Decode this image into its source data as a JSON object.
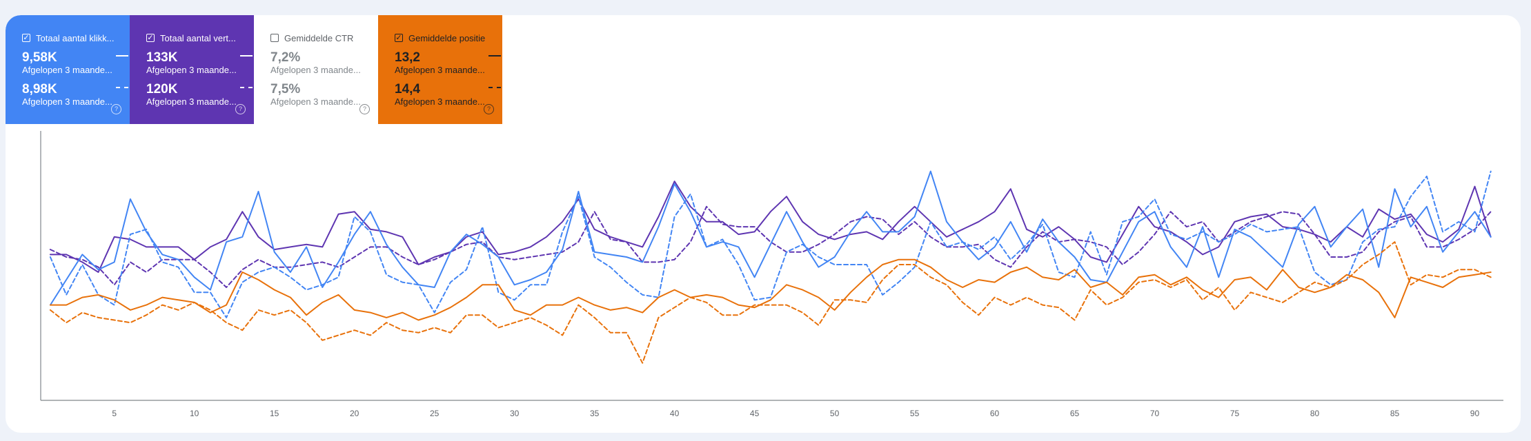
{
  "cards": [
    {
      "key": "clicks",
      "checked": true,
      "label": "Totaal aantal klikk...",
      "value1": "9,58K",
      "period1": "Afgelopen 3 maande...",
      "value2": "8,98K",
      "period2": "Afgelopen 3 maande...",
      "color": "#4285f4"
    },
    {
      "key": "impressions",
      "checked": true,
      "label": "Totaal aantal vert...",
      "value1": "133K",
      "period1": "Afgelopen 3 maande...",
      "value2": "120K",
      "period2": "Afgelopen 3 maande...",
      "color": "#5e35b1"
    },
    {
      "key": "ctr",
      "checked": false,
      "label": "Gemiddelde CTR",
      "value1": "7,2%",
      "period1": "Afgelopen 3 maande...",
      "value2": "7,5%",
      "period2": "Afgelopen 3 maande...",
      "color": "#ffffff"
    },
    {
      "key": "position",
      "checked": true,
      "label": "Gemiddelde positie",
      "value1": "13,2",
      "period1": "Afgelopen 3 maande...",
      "value2": "14,4",
      "period2": "Afgelopen 3 maande...",
      "color": "#e8710a"
    }
  ],
  "icons": {
    "checkbox": "checkbox-checked-icon",
    "help": "help-circle-icon",
    "check_glyph": "✓",
    "help_glyph": "?"
  },
  "chart_data": {
    "type": "line",
    "x_ticks": [
      5,
      10,
      15,
      20,
      25,
      30,
      35,
      40,
      45,
      50,
      55,
      60,
      65,
      70,
      75,
      80,
      85,
      90
    ],
    "xlim": [
      1,
      91
    ],
    "ylim": [
      0,
      100
    ],
    "grid": false,
    "legend": "none",
    "series": [
      {
        "key": "impr_prev",
        "color": "#5e35b1",
        "dash": true,
        "values": [
          59,
          56,
          55,
          52,
          45,
          54,
          50,
          55,
          55,
          55,
          50,
          44,
          51,
          55,
          52,
          52,
          53,
          54,
          52,
          56,
          60,
          60,
          56,
          53,
          55,
          58,
          61,
          62,
          56,
          55,
          56,
          57,
          58,
          62,
          74,
          63,
          62,
          54,
          54,
          55,
          62,
          76,
          69,
          68,
          68,
          62,
          58,
          58,
          61,
          65,
          70,
          72,
          71,
          65,
          70,
          64,
          60,
          60,
          61,
          55,
          52,
          60,
          66,
          62,
          63,
          62,
          60,
          53,
          58,
          65,
          74,
          68,
          70,
          62,
          66,
          70,
          72,
          74,
          73,
          65,
          56,
          56,
          58,
          66,
          70,
          72,
          60,
          60,
          63,
          67,
          74
        ]
      },
      {
        "key": "impr_cur",
        "color": "#5e35b1",
        "dash": false,
        "values": [
          57,
          57,
          54,
          50,
          64,
          63,
          60,
          60,
          60,
          55,
          60,
          63,
          74,
          64,
          59,
          60,
          61,
          60,
          73,
          74,
          67,
          66,
          64,
          53,
          56,
          58,
          64,
          66,
          57,
          58,
          60,
          64,
          70,
          79,
          67,
          64,
          62,
          60,
          72,
          86,
          76,
          70,
          70,
          65,
          66,
          74,
          80,
          70,
          65,
          63,
          65,
          66,
          63,
          70,
          76,
          70,
          64,
          67,
          70,
          74,
          83,
          67,
          64,
          68,
          63,
          56,
          54,
          65,
          76,
          68,
          66,
          62,
          57,
          60,
          70,
          72,
          73,
          68,
          67,
          65,
          62,
          68,
          64,
          75,
          71,
          73,
          65,
          62,
          67,
          84,
          64
        ]
      },
      {
        "key": "clicks_prev",
        "color": "#4285f4",
        "dash": true,
        "values": [
          56,
          41,
          53,
          41,
          37,
          65,
          67,
          54,
          52,
          42,
          42,
          32,
          46,
          50,
          52,
          48,
          43,
          45,
          48,
          72,
          66,
          49,
          46,
          45,
          34,
          46,
          51,
          68,
          42,
          39,
          45,
          45,
          66,
          80,
          56,
          52,
          46,
          41,
          40,
          72,
          81,
          60,
          63,
          53,
          39,
          40,
          58,
          61,
          56,
          53,
          53,
          53,
          41,
          46,
          52,
          70,
          60,
          62,
          59,
          64,
          55,
          61,
          69,
          50,
          48,
          66,
          49,
          70,
          72,
          79,
          65,
          63,
          66,
          62,
          65,
          69,
          66,
          67,
          68,
          50,
          45,
          47,
          62,
          67,
          68,
          80,
          88,
          66,
          70,
          66,
          90
        ]
      },
      {
        "key": "clicks_cur",
        "color": "#4285f4",
        "dash": false,
        "values": [
          37,
          47,
          57,
          51,
          54,
          79,
          66,
          57,
          55,
          48,
          43,
          62,
          64,
          82,
          58,
          50,
          60,
          44,
          54,
          65,
          74,
          61,
          52,
          45,
          44,
          58,
          65,
          61,
          56,
          45,
          47,
          50,
          59,
          82,
          58,
          57,
          56,
          54,
          68,
          85,
          74,
          60,
          62,
          60,
          48,
          61,
          74,
          62,
          52,
          56,
          66,
          74,
          66,
          66,
          72,
          90,
          70,
          62,
          55,
          60,
          70,
          58,
          71,
          62,
          56,
          47,
          46,
          58,
          70,
          74,
          60,
          52,
          68,
          48,
          67,
          64,
          58,
          52,
          69,
          76,
          60,
          68,
          75,
          52,
          83,
          68,
          76,
          58,
          66,
          74,
          64
        ]
      },
      {
        "key": "pos_prev",
        "color": "#e8710a",
        "dash": true,
        "values": [
          35,
          30,
          34,
          32,
          31,
          30,
          33,
          37,
          35,
          38,
          35,
          30,
          27,
          35,
          33,
          35,
          30,
          23,
          25,
          27,
          25,
          30,
          27,
          26,
          28,
          26,
          33,
          33,
          28,
          30,
          32,
          29,
          25,
          37,
          32,
          26,
          26,
          14,
          32,
          36,
          40,
          38,
          33,
          33,
          37,
          37,
          37,
          34,
          29,
          39,
          39,
          38,
          47,
          53,
          53,
          48,
          45,
          38,
          33,
          40,
          37,
          40,
          37,
          36,
          31,
          43,
          37,
          40,
          46,
          47,
          44,
          47,
          39,
          44,
          35,
          42,
          40,
          38,
          42,
          46,
          44,
          47,
          53,
          57,
          62,
          45,
          49,
          48,
          51,
          51,
          48
        ]
      },
      {
        "key": "pos_cur",
        "color": "#e8710a",
        "dash": false,
        "values": [
          37,
          37,
          40,
          41,
          39,
          35,
          37,
          40,
          39,
          38,
          34,
          37,
          50,
          47,
          43,
          40,
          33,
          38,
          41,
          35,
          34,
          32,
          34,
          31,
          33,
          36,
          40,
          45,
          45,
          35,
          33,
          37,
          37,
          40,
          37,
          35,
          36,
          34,
          40,
          43,
          40,
          41,
          40,
          37,
          36,
          39,
          45,
          43,
          40,
          35,
          42,
          48,
          53,
          55,
          55,
          52,
          47,
          44,
          47,
          46,
          50,
          52,
          48,
          47,
          51,
          44,
          46,
          41,
          48,
          49,
          45,
          48,
          43,
          40,
          47,
          48,
          43,
          51,
          44,
          42,
          44,
          49,
          47,
          42,
          32,
          48,
          46,
          44,
          48,
          49,
          50
        ]
      }
    ]
  }
}
